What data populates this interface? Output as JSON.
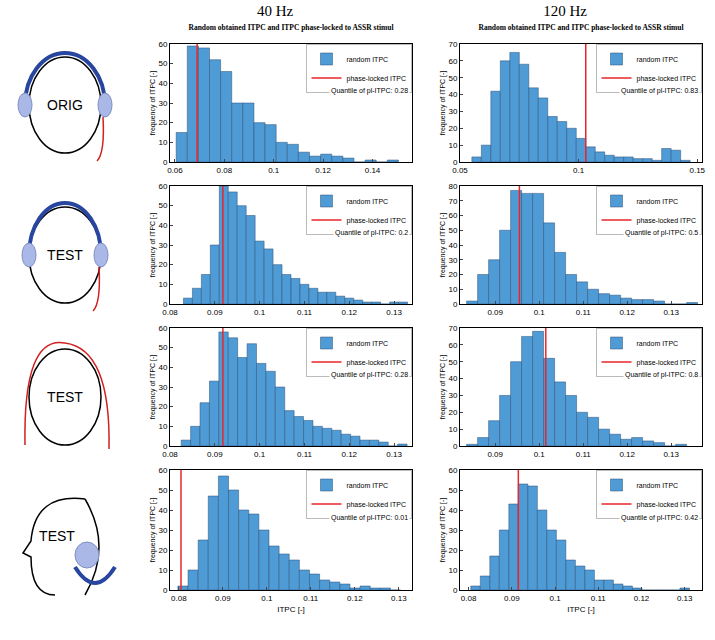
{
  "columns": [
    "40 Hz",
    "120 Hz"
  ],
  "rows": [
    {
      "label": "ORIG"
    },
    {
      "label": "TEST"
    },
    {
      "label": "TEST"
    },
    {
      "label": "TEST"
    }
  ],
  "chart_data": [
    {
      "type": "histogram",
      "title": "Random obtained ITPC and ITPC phase-locked to ASSR stimul",
      "y_label": "frequency of ITPC [-]",
      "bins": [
        0.0605,
        0.065,
        0.0695,
        0.074,
        0.0785,
        0.083,
        0.0875,
        0.092,
        0.0965,
        0.101,
        0.1055,
        0.11,
        0.1145,
        0.119,
        0.1235,
        0.128,
        0.1325,
        0.137,
        0.1415,
        0.146,
        0.1505
      ],
      "series": [
        {
          "name": "random ITPC",
          "color": "#4f9bd6",
          "values": [
            15,
            59,
            58,
            52,
            46,
            30,
            30,
            20,
            19,
            10,
            9,
            5,
            3,
            4,
            3,
            2,
            0,
            1,
            0,
            1
          ]
        },
        {
          "name": "phase-locked ITPC",
          "color": "#e8262a",
          "type": "vline",
          "x": 0.069
        }
      ],
      "annotations": [
        "Quantile of pl-ITPC: 0.28"
      ],
      "xlim": [
        0.058,
        0.156
      ],
      "xticks": [
        0.06,
        0.08,
        0.1,
        0.12,
        0.14
      ],
      "ylim": [
        0,
        60
      ],
      "yticks": [
        0,
        10,
        20,
        30,
        40,
        50,
        60
      ],
      "legend": "upper right",
      "grid": false
    },
    {
      "type": "histogram",
      "title": "Random obtained ITPC and ITPC phase-locked to ASSR stimul",
      "y_label": "frequency of ITPC [-]",
      "bins": [
        0.055,
        0.059,
        0.063,
        0.067,
        0.071,
        0.075,
        0.079,
        0.083,
        0.087,
        0.091,
        0.095,
        0.099,
        0.103,
        0.107,
        0.111,
        0.115,
        0.119,
        0.123,
        0.127,
        0.131,
        0.135,
        0.139,
        0.143,
        0.147
      ],
      "series": [
        {
          "name": "random ITPC",
          "color": "#4f9bd6",
          "values": [
            3,
            10,
            42,
            60,
            65,
            58,
            44,
            38,
            27,
            24,
            20,
            14,
            9,
            6,
            4,
            3,
            3,
            2,
            2,
            1,
            8,
            7,
            1
          ]
        },
        {
          "name": "phase-locked ITPC",
          "color": "#e8262a",
          "type": "vline",
          "x": 0.103
        }
      ],
      "annotations": [
        "Quantile of pl-ITPC: 0.83"
      ],
      "xlim": [
        0.05,
        0.152
      ],
      "xticks": [
        0.05,
        0.1,
        0.15
      ],
      "ylim": [
        0,
        70
      ],
      "yticks": [
        0,
        10,
        20,
        30,
        40,
        50,
        60,
        70
      ],
      "legend": "upper right",
      "grid": false
    },
    {
      "type": "histogram",
      "y_label": "frequency of ITPC [-]",
      "bins": [
        0.083,
        0.085,
        0.087,
        0.089,
        0.091,
        0.093,
        0.095,
        0.097,
        0.099,
        0.101,
        0.103,
        0.105,
        0.107,
        0.109,
        0.111,
        0.113,
        0.115,
        0.117,
        0.119,
        0.121,
        0.123,
        0.125,
        0.127,
        0.129,
        0.131,
        0.133
      ],
      "series": [
        {
          "name": "random ITPC",
          "color": "#4f9bd6",
          "values": [
            3,
            8,
            15,
            30,
            60,
            57,
            50,
            45,
            32,
            28,
            20,
            15,
            13,
            10,
            8,
            6,
            6,
            4,
            3,
            2,
            1,
            1,
            0,
            1,
            1
          ]
        },
        {
          "name": "phase-locked ITPC",
          "color": "#e8262a",
          "type": "vline",
          "x": 0.0918
        }
      ],
      "annotations": [
        "Quantile of pl-ITPC: 0.2"
      ],
      "xlim": [
        0.08,
        0.134
      ],
      "xticks": [
        0.08,
        0.09,
        0.1,
        0.11,
        0.12,
        0.13
      ],
      "ylim": [
        0,
        60
      ],
      "yticks": [
        0,
        10,
        20,
        30,
        40,
        50,
        60
      ],
      "legend": "upper right",
      "grid": false
    },
    {
      "type": "histogram",
      "y_label": "frequency of ITPC [-]",
      "bins": [
        0.0835,
        0.086,
        0.0885,
        0.091,
        0.0935,
        0.096,
        0.0985,
        0.101,
        0.1035,
        0.106,
        0.1085,
        0.111,
        0.1135,
        0.116,
        0.1185,
        0.121,
        0.1235,
        0.126,
        0.1285,
        0.131,
        0.1335,
        0.136
      ],
      "series": [
        {
          "name": "random ITPC",
          "color": "#4f9bd6",
          "values": [
            2,
            20,
            30,
            50,
            77,
            75,
            75,
            55,
            35,
            20,
            15,
            10,
            7,
            6,
            4,
            3,
            3,
            2,
            0,
            0,
            1
          ]
        },
        {
          "name": "phase-locked ITPC",
          "color": "#e8262a",
          "type": "vline",
          "x": 0.0955
        }
      ],
      "annotations": [
        "Quantile of pl-ITPC: 0.5"
      ],
      "xlim": [
        0.082,
        0.137
      ],
      "xticks": [
        0.09,
        0.1,
        0.11,
        0.12,
        0.13
      ],
      "ylim": [
        0,
        80
      ],
      "yticks": [
        0,
        10,
        20,
        30,
        40,
        50,
        60,
        70,
        80
      ],
      "legend": "upper right",
      "grid": false
    },
    {
      "type": "histogram",
      "y_label": "frequency of ITPC [-]",
      "bins": [
        0.0825,
        0.0846,
        0.0867,
        0.0888,
        0.0909,
        0.093,
        0.0951,
        0.0972,
        0.0993,
        0.1014,
        0.1035,
        0.1056,
        0.1077,
        0.1098,
        0.1119,
        0.114,
        0.1161,
        0.1182,
        0.1203,
        0.1224,
        0.1245,
        0.1266,
        0.1287,
        0.1308,
        0.1329
      ],
      "series": [
        {
          "name": "random ITPC",
          "color": "#4f9bd6",
          "values": [
            3,
            10,
            22,
            33,
            58,
            55,
            45,
            52,
            42,
            38,
            30,
            18,
            15,
            13,
            10,
            9,
            8,
            6,
            5,
            3,
            3,
            2,
            0,
            1
          ]
        },
        {
          "name": "phase-locked ITPC",
          "color": "#e8262a",
          "type": "vline",
          "x": 0.0918
        }
      ],
      "annotations": [
        "Quantile of pl-ITPC: 0.28"
      ],
      "xlim": [
        0.08,
        0.134
      ],
      "xticks": [
        0.08,
        0.09,
        0.1,
        0.11,
        0.12,
        0.13
      ],
      "ylim": [
        0,
        60
      ],
      "yticks": [
        0,
        10,
        20,
        30,
        40,
        50,
        60
      ],
      "legend": "upper right",
      "grid": false
    },
    {
      "type": "histogram",
      "y_label": "frequency of ITPC [-]",
      "bins": [
        0.0835,
        0.086,
        0.0885,
        0.091,
        0.0935,
        0.096,
        0.0985,
        0.101,
        0.1035,
        0.106,
        0.1085,
        0.111,
        0.1135,
        0.116,
        0.1185,
        0.121,
        0.1235,
        0.126,
        0.1285,
        0.131,
        0.1335
      ],
      "series": [
        {
          "name": "random ITPC",
          "color": "#4f9bd6",
          "values": [
            1,
            5,
            15,
            30,
            50,
            65,
            68,
            52,
            38,
            30,
            20,
            17,
            10,
            7,
            4,
            5,
            3,
            2,
            0,
            1
          ]
        },
        {
          "name": "phase-locked ITPC",
          "color": "#e8262a",
          "type": "vline",
          "x": 0.1015
        }
      ],
      "annotations": [
        "Quantile of pl-ITPC: 0.8"
      ],
      "xlim": [
        0.082,
        0.137
      ],
      "xticks": [
        0.09,
        0.1,
        0.11,
        0.12,
        0.13
      ],
      "ylim": [
        0,
        70
      ],
      "yticks": [
        0,
        10,
        20,
        30,
        40,
        50,
        60,
        70
      ],
      "legend": "upper right",
      "grid": false
    },
    {
      "type": "histogram",
      "x_label": "ITPC [-]",
      "y_label": "frequency of ITPC [-]",
      "bins": [
        0.0798,
        0.0821,
        0.0844,
        0.0867,
        0.089,
        0.0913,
        0.0936,
        0.0959,
        0.0982,
        0.1005,
        0.1028,
        0.1051,
        0.1074,
        0.1097,
        0.112,
        0.1143,
        0.1166,
        0.1189,
        0.1212,
        0.1235,
        0.1258,
        0.1281,
        0.1304
      ],
      "series": [
        {
          "name": "random ITPC",
          "color": "#4f9bd6",
          "values": [
            2,
            10,
            25,
            47,
            57,
            50,
            40,
            38,
            30,
            22,
            18,
            15,
            10,
            8,
            5,
            4,
            3,
            1,
            2,
            1,
            1,
            0
          ]
        },
        {
          "name": "phase-locked ITPC",
          "color": "#e8262a",
          "type": "vline",
          "x": 0.0805
        }
      ],
      "annotations": [
        "Quantile of pl-ITPC: 0.01"
      ],
      "xlim": [
        0.078,
        0.133
      ],
      "xticks": [
        0.08,
        0.09,
        0.1,
        0.11,
        0.12,
        0.13
      ],
      "ylim": [
        0,
        60
      ],
      "yticks": [
        0,
        10,
        20,
        30,
        40,
        50,
        60
      ],
      "legend": "upper right",
      "grid": false
    },
    {
      "type": "histogram",
      "x_label": "ITPC [-]",
      "y_label": "frequency of ITPC [-]",
      "bins": [
        0.0805,
        0.0827,
        0.0849,
        0.0871,
        0.0893,
        0.0915,
        0.0937,
        0.0959,
        0.0981,
        0.1003,
        0.1025,
        0.1047,
        0.1069,
        0.1091,
        0.1113,
        0.1135,
        0.1157,
        0.1179,
        0.1201,
        0.1223,
        0.1245,
        0.1267,
        0.1289,
        0.1311
      ],
      "series": [
        {
          "name": "random ITPC",
          "color": "#4f9bd6",
          "values": [
            2,
            7,
            17,
            30,
            43,
            53,
            52,
            40,
            30,
            25,
            15,
            12,
            10,
            5,
            5,
            3,
            2,
            1,
            0,
            0,
            0,
            0,
            1
          ]
        },
        {
          "name": "phase-locked ITPC",
          "color": "#e8262a",
          "type": "vline",
          "x": 0.0915
        }
      ],
      "annotations": [
        "Quantile of pl-ITPC: 0.42"
      ],
      "xlim": [
        0.078,
        0.134
      ],
      "xticks": [
        0.08,
        0.09,
        0.1,
        0.11,
        0.12,
        0.13
      ],
      "ylim": [
        0,
        60
      ],
      "yticks": [
        0,
        10,
        20,
        30,
        40,
        50,
        60
      ],
      "legend": "upper right",
      "grid": false
    }
  ]
}
